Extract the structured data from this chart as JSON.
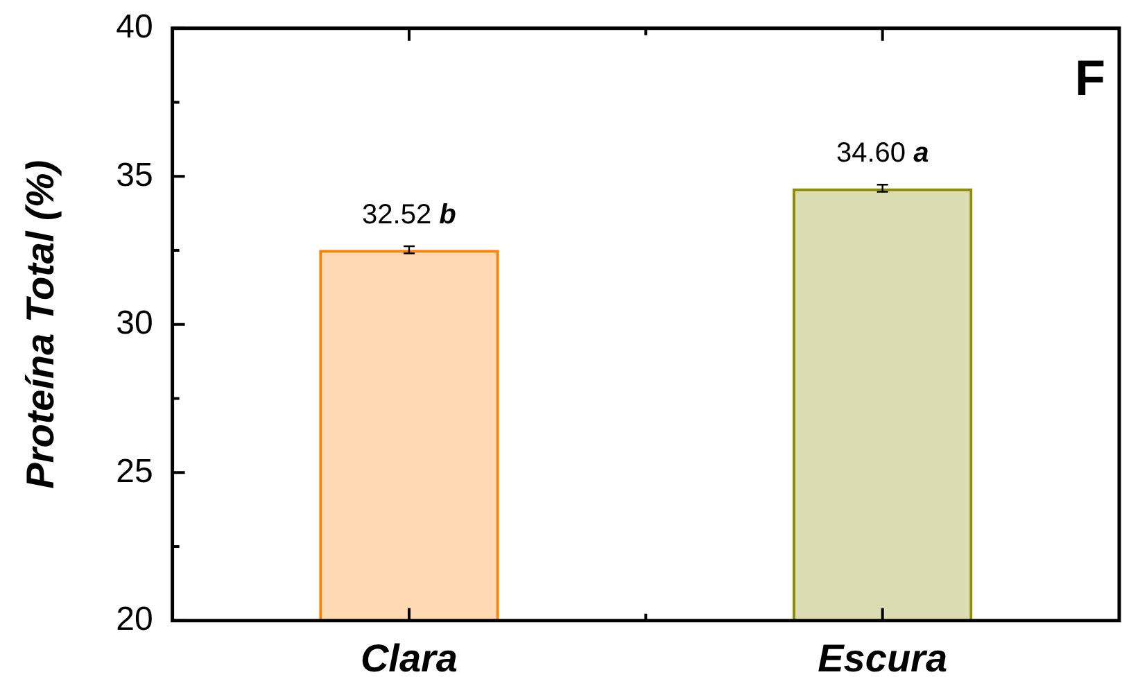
{
  "chart_data": {
    "type": "bar",
    "ylabel": "Proteína Total (%)",
    "categories": [
      "Clara",
      "Escura"
    ],
    "values": [
      32.52,
      34.6
    ],
    "colors": [
      "#ff8000",
      "#8c8c00"
    ],
    "errors": [
      0.12,
      0.12
    ],
    "value_labels": [
      "32.52 b",
      "34.60 a"
    ],
    "ylim": [
      20,
      40
    ],
    "yticks": [
      20,
      {
        "value": 22.5,
        "label": null
      },
      25,
      {
        "value": 27.5,
        "label": null
      },
      30,
      {
        "value": 32.5,
        "label": null
      },
      35,
      {
        "value": 37.5,
        "label": null
      },
      40
    ],
    "annotations": [
      "F"
    ],
    "grid": false,
    "legend": false
  }
}
